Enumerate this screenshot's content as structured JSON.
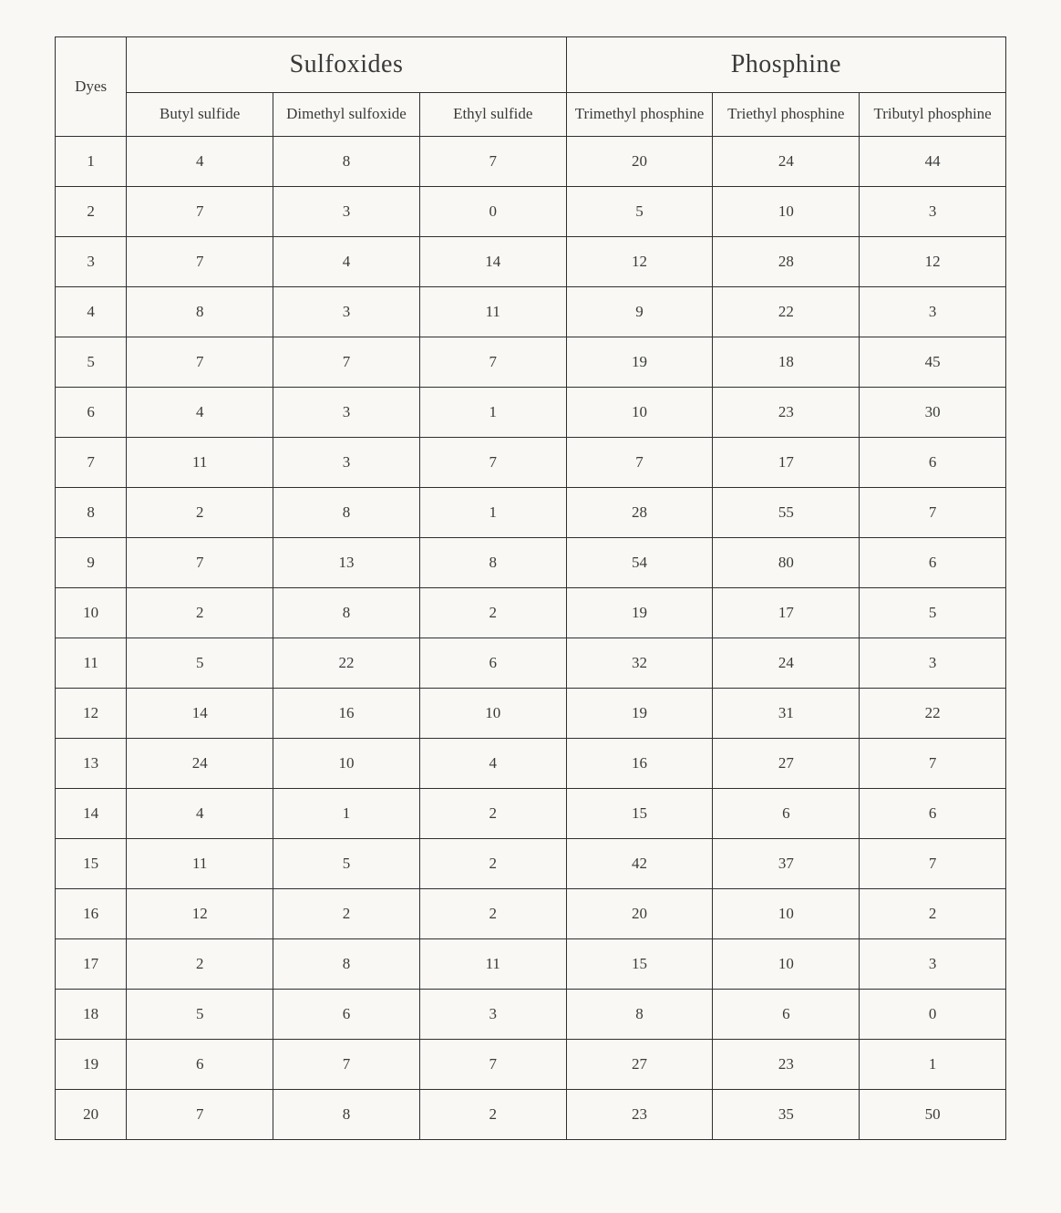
{
  "table": {
    "type": "table",
    "background_color": "#f9f8f4",
    "border_color": "#2f2f2f",
    "text_color": "#3a3a3a",
    "group_header_fontsize": 28,
    "sub_header_fontsize": 17,
    "cell_fontsize": 17,
    "corner_label": "Dyes",
    "groups": [
      {
        "label": "Sulfoxides",
        "span": 3
      },
      {
        "label": "Phosphine",
        "span": 3
      }
    ],
    "columns": [
      "Butyl sulfide",
      "Dimethyl sulfoxide",
      "Ethyl sulfide",
      "Trimethyl phosphine",
      "Triethyl phosphine",
      "Tributyl phosphine"
    ],
    "rows": [
      {
        "dye": "1",
        "v": [
          4,
          8,
          7,
          20,
          24,
          44
        ]
      },
      {
        "dye": "2",
        "v": [
          7,
          3,
          0,
          5,
          10,
          3
        ]
      },
      {
        "dye": "3",
        "v": [
          7,
          4,
          14,
          12,
          28,
          12
        ]
      },
      {
        "dye": "4",
        "v": [
          8,
          3,
          11,
          9,
          22,
          3
        ]
      },
      {
        "dye": "5",
        "v": [
          7,
          7,
          7,
          19,
          18,
          45
        ]
      },
      {
        "dye": "6",
        "v": [
          4,
          3,
          1,
          10,
          23,
          30
        ]
      },
      {
        "dye": "7",
        "v": [
          11,
          3,
          7,
          7,
          17,
          6
        ]
      },
      {
        "dye": "8",
        "v": [
          2,
          8,
          1,
          28,
          55,
          7
        ]
      },
      {
        "dye": "9",
        "v": [
          7,
          13,
          8,
          54,
          80,
          6
        ]
      },
      {
        "dye": "10",
        "v": [
          2,
          8,
          2,
          19,
          17,
          5
        ]
      },
      {
        "dye": "11",
        "v": [
          5,
          22,
          6,
          32,
          24,
          3
        ]
      },
      {
        "dye": "12",
        "v": [
          14,
          16,
          10,
          19,
          31,
          22
        ]
      },
      {
        "dye": "13",
        "v": [
          24,
          10,
          4,
          16,
          27,
          7
        ]
      },
      {
        "dye": "14",
        "v": [
          4,
          1,
          2,
          15,
          6,
          6
        ]
      },
      {
        "dye": "15",
        "v": [
          11,
          5,
          2,
          42,
          37,
          7
        ]
      },
      {
        "dye": "16",
        "v": [
          12,
          2,
          2,
          20,
          10,
          2
        ]
      },
      {
        "dye": "17",
        "v": [
          2,
          8,
          11,
          15,
          10,
          3
        ]
      },
      {
        "dye": "18",
        "v": [
          5,
          6,
          3,
          8,
          6,
          0
        ]
      },
      {
        "dye": "19",
        "v": [
          6,
          7,
          7,
          27,
          23,
          1
        ]
      },
      {
        "dye": "20",
        "v": [
          7,
          8,
          2,
          23,
          35,
          50
        ]
      }
    ]
  }
}
